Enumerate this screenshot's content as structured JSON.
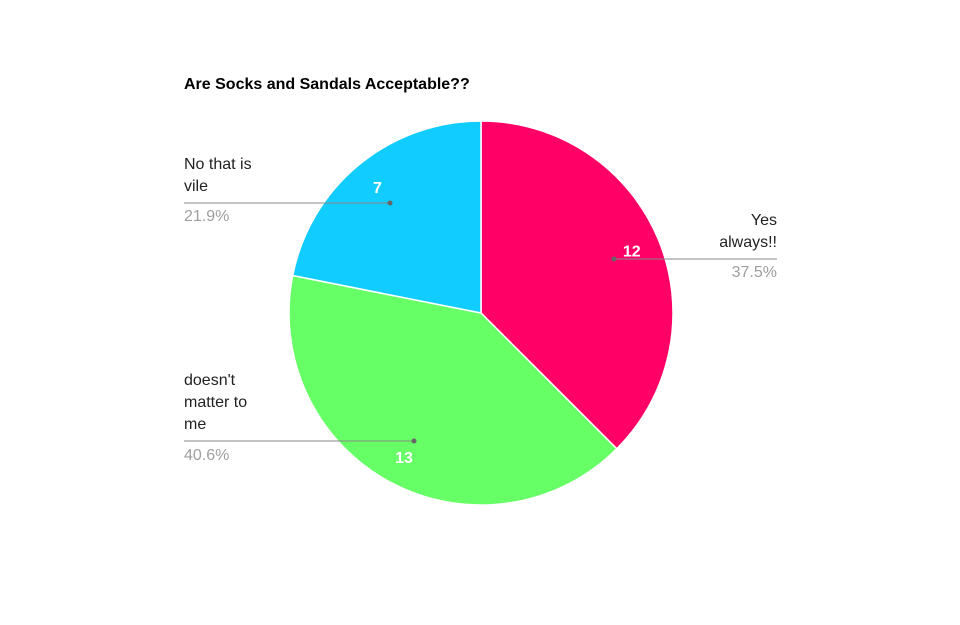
{
  "chart_data": {
    "type": "pie",
    "title": "Are Socks and Sandals Acceptable??",
    "categories": [
      "Yes always!!",
      "doesn't matter to me",
      "No that is vile"
    ],
    "values": [
      12,
      13,
      7
    ],
    "percent_labels": [
      "37.5%",
      "40.6%",
      "21.9%"
    ],
    "colors": [
      "#ff0066",
      "#66ff66",
      "#11ccff"
    ]
  }
}
